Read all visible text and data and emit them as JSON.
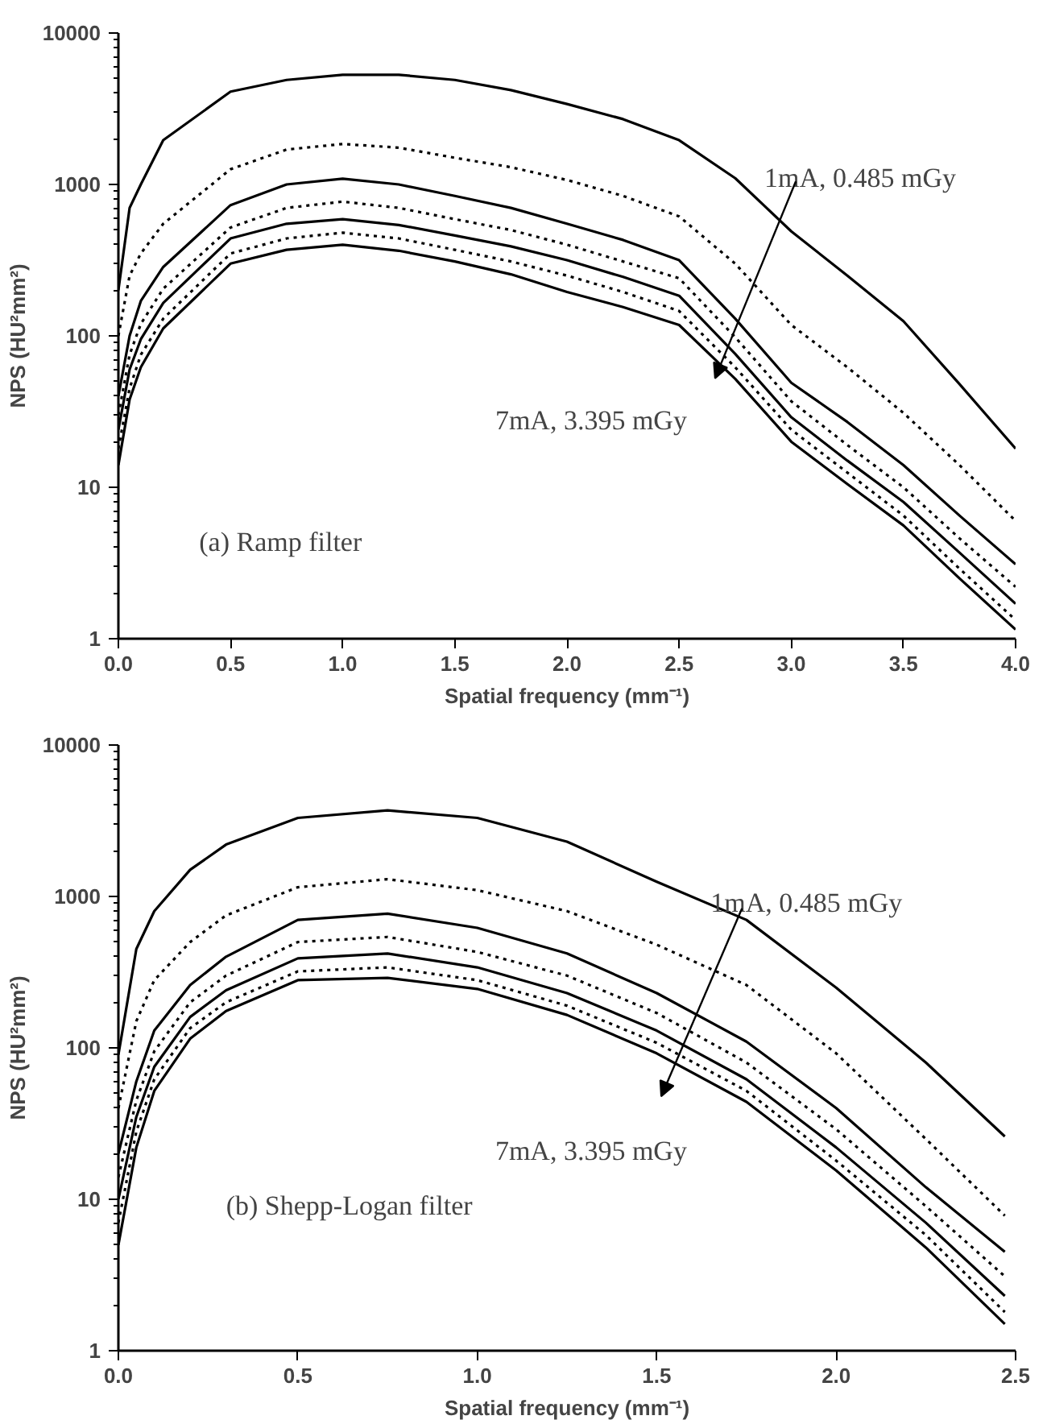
{
  "chart_data": [
    {
      "type": "line",
      "xlabel": "Spatial frequency (mm⁻¹)",
      "ylabel": "NPS (HU²mm²)",
      "log": "y",
      "grid": false,
      "x": [
        0,
        0.05,
        0.1,
        0.2,
        0.5,
        0.75,
        1.0,
        1.25,
        1.5,
        1.75,
        2.0,
        2.25,
        2.5,
        2.75,
        3.0,
        3.25,
        3.5,
        3.75,
        4.0
      ],
      "xlim": [
        0,
        4
      ],
      "xticks": [
        {
          "value": 0,
          "label": "0.0"
        },
        0.5,
        {
          "value": 1,
          "label": "1.0"
        },
        1.5,
        {
          "value": 2,
          "label": "2.0"
        },
        2.5,
        {
          "value": 3,
          "label": "3.0"
        },
        3.5,
        {
          "value": 4,
          "label": "4.0"
        }
      ],
      "ylim": [
        1,
        10000
      ],
      "yticks": [
        1,
        10,
        100,
        1000,
        10000
      ],
      "series": [
        {
          "color": "#000000",
          "line_style": "solid",
          "values": [
            200,
            700,
            1000,
            1960,
            4100,
            4900,
            5300,
            5300,
            4900,
            4200,
            3400,
            2700,
            1960,
            1100,
            490,
            250,
            125,
            48,
            18
          ]
        },
        {
          "color": "#000000",
          "line_style": "dotted",
          "values": [
            100,
            250,
            350,
            550,
            1260,
            1700,
            1850,
            1750,
            1500,
            1300,
            1070,
            840,
            615,
            300,
            118,
            62,
            31,
            14,
            6
          ]
        },
        {
          "color": "#000000",
          "line_style": "solid",
          "values": [
            40,
            100,
            170,
            285,
            730,
            1000,
            1090,
            1000,
            840,
            700,
            550,
            430,
            316,
            130,
            49,
            27,
            14,
            6.5,
            3.1
          ]
        },
        {
          "color": "#000000",
          "line_style": "dotted",
          "values": [
            30,
            75,
            120,
            205,
            520,
            700,
            770,
            700,
            590,
            500,
            400,
            310,
            240,
            98,
            37,
            19,
            10,
            4.6,
            2.2
          ]
        },
        {
          "color": "#000000",
          "line_style": "solid",
          "values": [
            24,
            60,
            95,
            165,
            440,
            550,
            590,
            540,
            460,
            390,
            316,
            245,
            184,
            76,
            29,
            15,
            8,
            3.7,
            1.7
          ]
        },
        {
          "color": "#000000",
          "line_style": "dotted",
          "values": [
            18,
            45,
            75,
            130,
            350,
            440,
            480,
            440,
            370,
            310,
            250,
            195,
            146,
            62,
            24,
            12.5,
            6.5,
            2.9,
            1.33
          ]
        },
        {
          "color": "#000000",
          "line_style": "solid",
          "values": [
            14,
            38,
            62,
            112,
            300,
            370,
            400,
            365,
            310,
            255,
            195,
            155,
            118,
            52,
            20,
            10.5,
            5.6,
            2.5,
            1.15
          ]
        }
      ],
      "annotations": [
        "1mA, 0.485 mGy",
        "7mA, 3.395 mGy",
        "(a)    Ramp filter"
      ]
    },
    {
      "type": "line",
      "xlabel": "Spatial frequency (mm⁻¹)",
      "ylabel": "NPS (HU²mm²)",
      "log": "y",
      "grid": false,
      "x": [
        0,
        0.05,
        0.1,
        0.2,
        0.3,
        0.5,
        0.75,
        1.0,
        1.25,
        1.5,
        1.75,
        2.0,
        2.25,
        2.47
      ],
      "xlim": [
        0,
        2.5
      ],
      "xticks": [
        {
          "value": 0,
          "label": "0.0"
        },
        0.5,
        {
          "value": 1,
          "label": "1.0"
        },
        1.5,
        {
          "value": 2,
          "label": "2.0"
        },
        2.5
      ],
      "ylim": [
        1,
        10000
      ],
      "yticks": [
        1,
        10,
        100,
        1000,
        10000
      ],
      "series": [
        {
          "color": "#000000",
          "line_style": "solid",
          "values": [
            90,
            450,
            800,
            1500,
            2200,
            3300,
            3700,
            3300,
            2300,
            1250,
            700,
            250,
            80,
            26
          ]
        },
        {
          "color": "#000000",
          "line_style": "dotted",
          "values": [
            40,
            150,
            280,
            500,
            750,
            1150,
            1300,
            1100,
            800,
            480,
            260,
            92,
            25,
            7.8
          ]
        },
        {
          "color": "#000000",
          "line_style": "solid",
          "values": [
            20,
            60,
            130,
            260,
            400,
            700,
            770,
            620,
            420,
            230,
            110,
            40,
            12,
            4.5
          ]
        },
        {
          "color": "#000000",
          "line_style": "dotted",
          "values": [
            14,
            45,
            95,
            200,
            300,
            500,
            540,
            430,
            300,
            170,
            80,
            29,
            9,
            3.1
          ]
        },
        {
          "color": "#000000",
          "line_style": "solid",
          "values": [
            10,
            35,
            75,
            160,
            240,
            390,
            420,
            340,
            230,
            130,
            62,
            22,
            7,
            2.3
          ]
        },
        {
          "color": "#000000",
          "line_style": "dotted",
          "values": [
            7,
            28,
            62,
            135,
            200,
            320,
            340,
            280,
            190,
            108,
            52,
            18,
            5.8,
            1.8
          ]
        },
        {
          "color": "#000000",
          "line_style": "solid",
          "values": [
            5,
            22,
            52,
            115,
            175,
            280,
            290,
            245,
            165,
            92,
            44,
            15.5,
            4.8,
            1.5
          ]
        }
      ],
      "annotations": [
        "1mA, 0.485 mGy",
        "7mA, 3.395 mGy",
        "(b)    Shepp-Logan filter"
      ]
    }
  ]
}
